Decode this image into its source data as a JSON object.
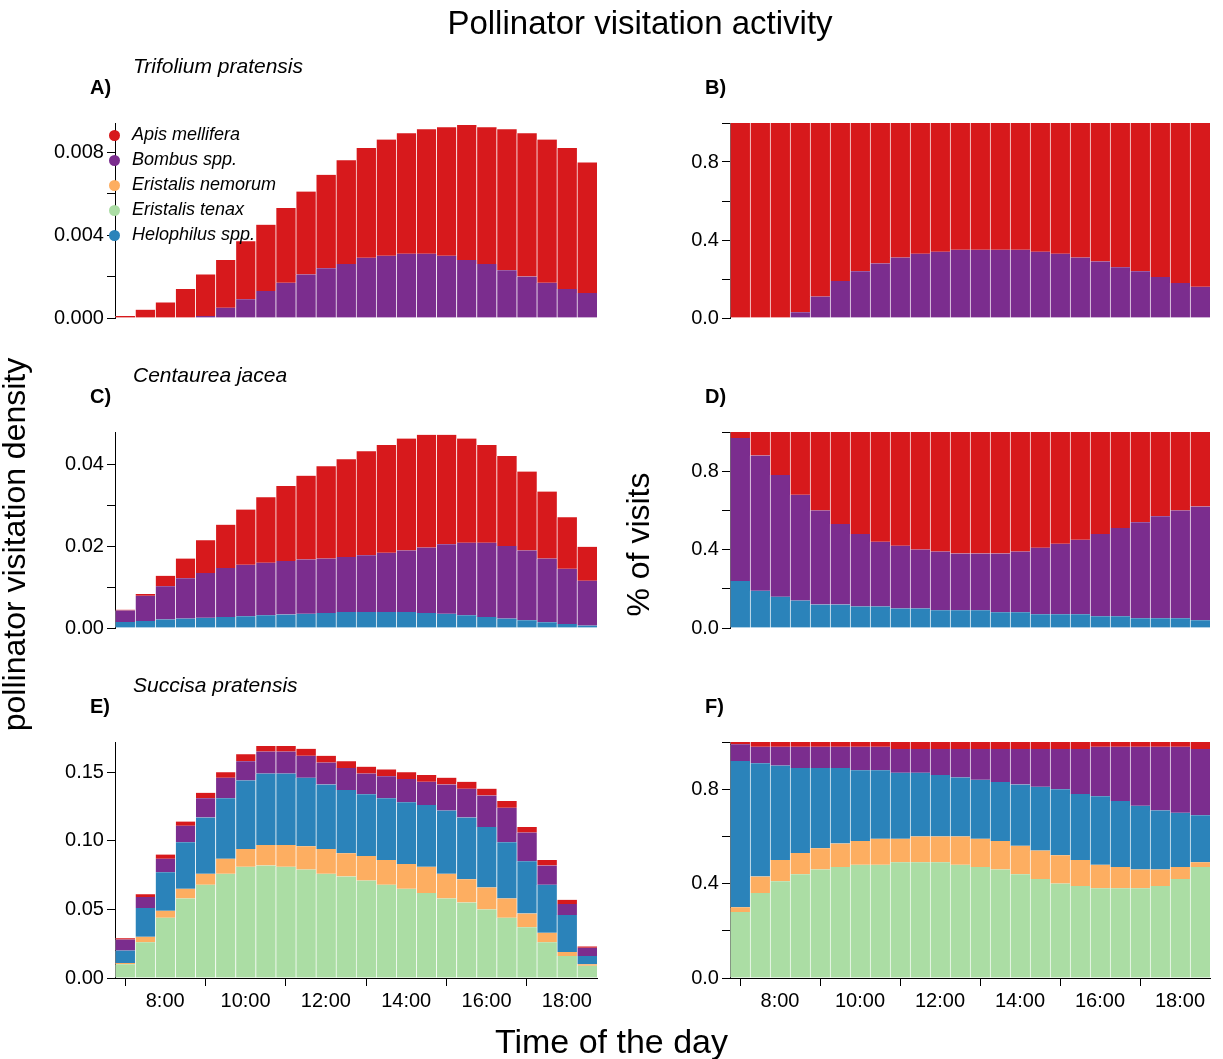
{
  "chart_data": [
    {
      "type": "bar",
      "stacked": true,
      "title": "A)",
      "subtitle": "Trifolium pratensis",
      "annotations": [
        "Pollinator visitation activity"
      ],
      "legend": "top left",
      "tick_labels": "y",
      "x": [
        7,
        7.5,
        8,
        8.5,
        9,
        9.5,
        10,
        10.5,
        11,
        11.5,
        12,
        12.5,
        13,
        13.5,
        14,
        14.5,
        15,
        15.5,
        16,
        16.5,
        17,
        17.5,
        18,
        18.5
      ],
      "xlim": [
        6.75,
        18.75
      ],
      "ylim": [
        0,
        0.0094
      ],
      "yticks": [
        {
          "value": 0,
          "label": "0.000"
        },
        {
          "value": 0.002,
          "label": null
        },
        0.004,
        {
          "value": 0.006,
          "label": null
        },
        0.008
      ],
      "series": [
        {
          "name": "Helophilus spp.",
          "color": "#2b83ba",
          "values": [
            null,
            null,
            null,
            null,
            null,
            null,
            null,
            null,
            null,
            null,
            null,
            null,
            null,
            null,
            null,
            null,
            null,
            null,
            null,
            null,
            null,
            null,
            null,
            null
          ]
        },
        {
          "name": "Eristalis tenax",
          "color": "#abdda4",
          "values": [
            null,
            null,
            null,
            null,
            null,
            null,
            null,
            null,
            null,
            null,
            null,
            null,
            null,
            null,
            null,
            null,
            null,
            null,
            null,
            null,
            null,
            null,
            null,
            null
          ]
        },
        {
          "name": "Eristalis nemorum",
          "color": "#fdae61",
          "values": [
            null,
            null,
            null,
            null,
            null,
            null,
            null,
            null,
            null,
            null,
            null,
            null,
            null,
            null,
            null,
            null,
            null,
            null,
            null,
            null,
            null,
            null,
            null,
            null
          ]
        },
        {
          "name": "Bombus spp.",
          "color": "#7b2d8e",
          "values": [
            0,
            0,
            0,
            0,
            0.0001,
            0.0005,
            0.0009,
            0.0013,
            0.0017,
            0.0021,
            0.0024,
            0.0026,
            0.0029,
            0.003,
            0.0031,
            0.0031,
            0.003,
            0.0028,
            0.0026,
            0.0023,
            0.002,
            0.0017,
            0.0014,
            0.0012
          ]
        },
        {
          "name": "Apis mellifera",
          "color": "#d7191c",
          "values": [
            0.0001,
            0.0004,
            0.00075,
            0.0014,
            0.002,
            0.0023,
            0.0028,
            0.0032,
            0.0036,
            0.004,
            0.0045,
            0.005,
            0.0053,
            0.0056,
            0.0058,
            0.006,
            0.0062,
            0.0065,
            0.0066,
            0.0068,
            0.0069,
            0.0069,
            0.0068,
            0.0063
          ]
        }
      ]
    },
    {
      "type": "bar",
      "stacked": true,
      "title": "B)",
      "tick_labels": "y",
      "x": [
        7,
        7.5,
        8,
        8.5,
        9,
        9.5,
        10,
        10.5,
        11,
        11.5,
        12,
        12.5,
        13,
        13.5,
        14,
        14.5,
        15,
        15.5,
        16,
        16.5,
        17,
        17.5,
        18,
        18.5
      ],
      "xlim": [
        6.75,
        18.75
      ],
      "ylim": [
        0,
        1
      ],
      "yticks": [
        {
          "value": 0,
          "label": "0.0"
        },
        {
          "value": 0.2,
          "label": null
        },
        0.4,
        {
          "value": 0.6,
          "label": null
        },
        0.8,
        {
          "value": 1,
          "label": null
        }
      ],
      "series": [
        {
          "color": "#7b2d8e",
          "values": [
            0,
            0,
            0,
            0.03,
            0.11,
            0.19,
            0.24,
            0.28,
            0.31,
            0.33,
            0.34,
            0.35,
            0.35,
            0.35,
            0.35,
            0.34,
            0.33,
            0.31,
            0.29,
            0.26,
            0.24,
            0.21,
            0.18,
            0.16
          ]
        },
        {
          "color": "#d7191c",
          "values": [
            1,
            1,
            1,
            0.97,
            0.89,
            0.81,
            0.76,
            0.72,
            0.69,
            0.67,
            0.66,
            0.65,
            0.65,
            0.65,
            0.65,
            0.66,
            0.67,
            0.69,
            0.71,
            0.74,
            0.76,
            0.79,
            0.82,
            0.84
          ]
        }
      ]
    },
    {
      "type": "bar",
      "stacked": true,
      "title": "C)",
      "subtitle": "Centaurea jacea",
      "ylabel": "pollinator visitation density",
      "tick_labels": "y",
      "x": [
        7,
        7.5,
        8,
        8.5,
        9,
        9.5,
        10,
        10.5,
        11,
        11.5,
        12,
        12.5,
        13,
        13.5,
        14,
        14.5,
        15,
        15.5,
        16,
        16.5,
        17,
        17.5,
        18,
        18.5
      ],
      "xlim": [
        6.75,
        18.75
      ],
      "ylim": [
        0,
        0.048
      ],
      "yticks": [
        {
          "value": 0,
          "label": "0.00"
        },
        {
          "value": 0.01,
          "label": null
        },
        0.02,
        {
          "value": 0.03,
          "label": null
        },
        0.04
      ],
      "series": [
        {
          "color": "#2b83ba",
          "values": [
            0.0015,
            0.0017,
            0.0021,
            0.0023,
            0.0025,
            0.0027,
            0.0029,
            0.0031,
            0.0033,
            0.0035,
            0.0037,
            0.0039,
            0.0039,
            0.0039,
            0.0039,
            0.0037,
            0.0035,
            0.0031,
            0.0027,
            0.0023,
            0.0019,
            0.0014,
            0.001,
            0.0006
          ]
        },
        {
          "color": "#7b2d8e",
          "values": [
            0.0028,
            0.0062,
            0.0081,
            0.0099,
            0.011,
            0.012,
            0.0126,
            0.0129,
            0.0131,
            0.0133,
            0.0133,
            0.0135,
            0.0139,
            0.0145,
            0.0151,
            0.016,
            0.017,
            0.0178,
            0.0182,
            0.0178,
            0.0171,
            0.0156,
            0.0135,
            0.011
          ]
        },
        {
          "color": "#d7191c",
          "values": [
            0.0002,
            0.0004,
            0.0026,
            0.0048,
            0.008,
            0.0106,
            0.0135,
            0.016,
            0.0184,
            0.0205,
            0.0226,
            0.0239,
            0.0255,
            0.0264,
            0.0274,
            0.0276,
            0.0268,
            0.0255,
            0.0239,
            0.022,
            0.0193,
            0.0164,
            0.0126,
            0.0083
          ]
        }
      ]
    },
    {
      "type": "bar",
      "stacked": true,
      "title": "D)",
      "ylabel": "% of visits",
      "tick_labels": "y",
      "x": [
        7,
        7.5,
        8,
        8.5,
        9,
        9.5,
        10,
        10.5,
        11,
        11.5,
        12,
        12.5,
        13,
        13.5,
        14,
        14.5,
        15,
        15.5,
        16,
        16.5,
        17,
        17.5,
        18,
        18.5
      ],
      "xlim": [
        6.75,
        18.75
      ],
      "ylim": [
        0,
        1
      ],
      "yticks": [
        {
          "value": 0,
          "label": "0.0"
        },
        {
          "value": 0.2,
          "label": null
        },
        0.4,
        {
          "value": 0.6,
          "label": null
        },
        0.8,
        {
          "value": 1,
          "label": null
        }
      ],
      "series": [
        {
          "color": "#2b83ba",
          "values": [
            0.24,
            0.19,
            0.16,
            0.14,
            0.12,
            0.12,
            0.11,
            0.11,
            0.1,
            0.1,
            0.09,
            0.09,
            0.09,
            0.08,
            0.08,
            0.07,
            0.07,
            0.07,
            0.06,
            0.06,
            0.05,
            0.05,
            0.05,
            0.04
          ]
        },
        {
          "color": "#7b2d8e",
          "values": [
            0.73,
            0.69,
            0.62,
            0.54,
            0.48,
            0.41,
            0.37,
            0.33,
            0.32,
            0.3,
            0.3,
            0.29,
            0.29,
            0.3,
            0.31,
            0.34,
            0.36,
            0.38,
            0.42,
            0.45,
            0.49,
            0.52,
            0.55,
            0.58
          ]
        },
        {
          "color": "#d7191c",
          "values": [
            0.03,
            0.12,
            0.22,
            0.32,
            0.4,
            0.47,
            0.52,
            0.56,
            0.58,
            0.6,
            0.61,
            0.62,
            0.62,
            0.62,
            0.61,
            0.59,
            0.57,
            0.55,
            0.52,
            0.49,
            0.46,
            0.43,
            0.4,
            0.38
          ]
        }
      ]
    },
    {
      "type": "bar",
      "stacked": true,
      "title": "E)",
      "subtitle": "Succisa pratensis",
      "xlabel": "Time of the day",
      "x": [
        7,
        7.5,
        8,
        8.5,
        9,
        9.5,
        10,
        10.5,
        11,
        11.5,
        12,
        12.5,
        13,
        13.5,
        14,
        14.5,
        15,
        15.5,
        16,
        16.5,
        17,
        17.5,
        18,
        18.5
      ],
      "xlim": [
        6.75,
        18.75
      ],
      "xticks": [
        {
          "value": 8,
          "label": "8:00"
        },
        {
          "value": 10,
          "label": "10:00"
        },
        {
          "value": 12,
          "label": "12:00"
        },
        {
          "value": 14,
          "label": "14:00"
        },
        {
          "value": 16,
          "label": "16:00"
        },
        {
          "value": 18,
          "label": "18:00"
        }
      ],
      "ylim": [
        0,
        0.172
      ],
      "yticks": [
        {
          "value": 0,
          "label": "0.00"
        },
        0.05,
        {
          "value": 0.1,
          "label": "0.10"
        },
        0.15
      ],
      "series": [
        {
          "color": "#abdda4",
          "values": [
            0.01,
            0.026,
            0.044,
            0.058,
            0.068,
            0.076,
            0.081,
            0.082,
            0.081,
            0.079,
            0.076,
            0.074,
            0.071,
            0.068,
            0.065,
            0.062,
            0.058,
            0.055,
            0.05,
            0.044,
            0.037,
            0.026,
            0.016,
            0.009
          ]
        },
        {
          "color": "#fdae61",
          "values": [
            0.001,
            0.004,
            0.005,
            0.007,
            0.008,
            0.011,
            0.013,
            0.015,
            0.016,
            0.017,
            0.018,
            0.017,
            0.018,
            0.018,
            0.018,
            0.019,
            0.018,
            0.017,
            0.016,
            0.014,
            0.01,
            0.007,
            0.003,
            0.001
          ]
        },
        {
          "color": "#2b83ba",
          "values": [
            0.009,
            0.021,
            0.028,
            0.034,
            0.041,
            0.044,
            0.05,
            0.052,
            0.052,
            0.05,
            0.047,
            0.046,
            0.045,
            0.045,
            0.045,
            0.045,
            0.046,
            0.045,
            0.044,
            0.041,
            0.038,
            0.035,
            0.027,
            0.006
          ]
        },
        {
          "color": "#7b2d8e",
          "values": [
            0.008,
            0.008,
            0.01,
            0.012,
            0.014,
            0.015,
            0.014,
            0.016,
            0.016,
            0.016,
            0.016,
            0.016,
            0.015,
            0.016,
            0.017,
            0.017,
            0.019,
            0.021,
            0.023,
            0.025,
            0.021,
            0.014,
            0.008,
            0.006
          ]
        },
        {
          "color": "#d7191c",
          "values": [
            0.001,
            0.002,
            0.003,
            0.003,
            0.004,
            0.004,
            0.005,
            0.004,
            0.004,
            0.005,
            0.005,
            0.005,
            0.005,
            0.005,
            0.005,
            0.005,
            0.005,
            0.005,
            0.005,
            0.005,
            0.004,
            0.004,
            0.003,
            0.001
          ]
        }
      ]
    },
    {
      "type": "bar",
      "stacked": true,
      "title": "F)",
      "x": [
        7,
        7.5,
        8,
        8.5,
        9,
        9.5,
        10,
        10.5,
        11,
        11.5,
        12,
        12.5,
        13,
        13.5,
        14,
        14.5,
        15,
        15.5,
        16,
        16.5,
        17,
        17.5,
        18,
        18.5
      ],
      "xlim": [
        6.75,
        18.75
      ],
      "xticks": [
        {
          "value": 8,
          "label": "8:00"
        },
        {
          "value": 10,
          "label": "10:00"
        },
        {
          "value": 12,
          "label": "12:00"
        },
        {
          "value": 14,
          "label": "14:00"
        },
        {
          "value": 16,
          "label": "16:00"
        },
        {
          "value": 18,
          "label": "18:00"
        }
      ],
      "ylim": [
        0,
        1
      ],
      "yticks": [
        {
          "value": 0,
          "label": "0.0"
        },
        {
          "value": 0.2,
          "label": null
        },
        0.4,
        {
          "value": 0.6,
          "label": null
        },
        0.8,
        {
          "value": 1,
          "label": null
        }
      ],
      "series": [
        {
          "color": "#abdda4",
          "values": [
            0.28,
            0.36,
            0.41,
            0.44,
            0.46,
            0.47,
            0.48,
            0.48,
            0.49,
            0.49,
            0.49,
            0.48,
            0.47,
            0.46,
            0.44,
            0.42,
            0.4,
            0.39,
            0.38,
            0.38,
            0.38,
            0.39,
            0.42,
            0.47
          ]
        },
        {
          "color": "#fdae61",
          "values": [
            0.02,
            0.07,
            0.09,
            0.09,
            0.09,
            0.1,
            0.1,
            0.11,
            0.1,
            0.11,
            0.11,
            0.12,
            0.12,
            0.12,
            0.12,
            0.12,
            0.12,
            0.11,
            0.1,
            0.09,
            0.08,
            0.07,
            0.05,
            0.02
          ]
        },
        {
          "color": "#2b83ba",
          "values": [
            0.62,
            0.48,
            0.4,
            0.36,
            0.34,
            0.32,
            0.3,
            0.29,
            0.28,
            0.27,
            0.26,
            0.25,
            0.25,
            0.25,
            0.26,
            0.27,
            0.28,
            0.28,
            0.29,
            0.28,
            0.27,
            0.25,
            0.23,
            0.2
          ]
        },
        {
          "color": "#7b2d8e",
          "values": [
            0.07,
            0.07,
            0.08,
            0.09,
            0.09,
            0.09,
            0.1,
            0.1,
            0.1,
            0.1,
            0.11,
            0.12,
            0.13,
            0.14,
            0.15,
            0.16,
            0.17,
            0.19,
            0.21,
            0.23,
            0.25,
            0.27,
            0.28,
            0.28
          ]
        },
        {
          "color": "#d7191c",
          "values": [
            0.01,
            0.02,
            0.02,
            0.02,
            0.02,
            0.02,
            0.02,
            0.02,
            0.03,
            0.03,
            0.03,
            0.03,
            0.03,
            0.03,
            0.03,
            0.03,
            0.03,
            0.03,
            0.02,
            0.02,
            0.02,
            0.02,
            0.02,
            0.03
          ]
        }
      ]
    }
  ]
}
